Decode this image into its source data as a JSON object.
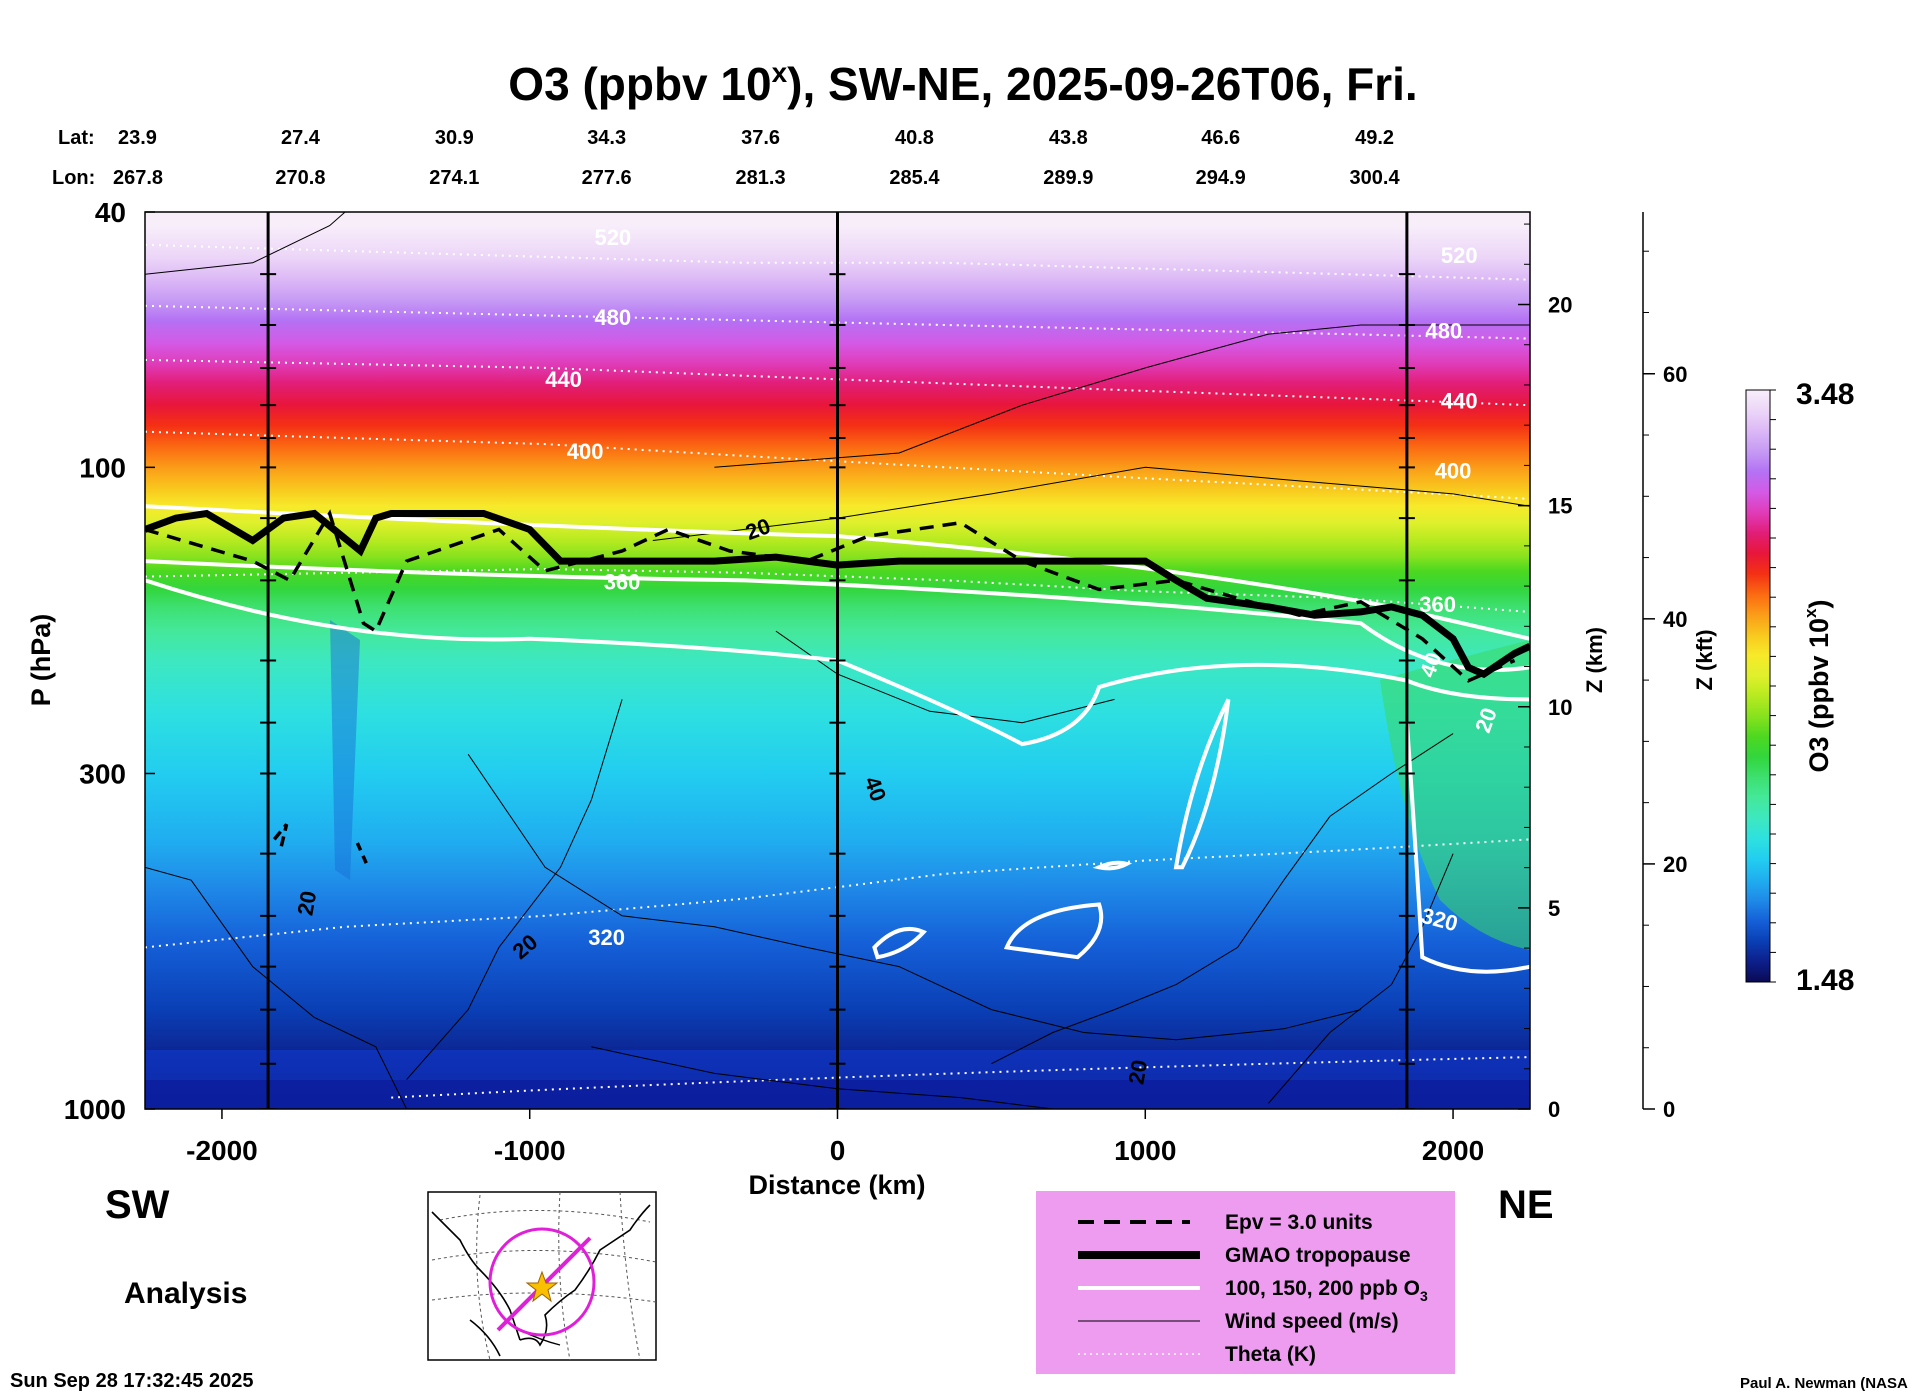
{
  "title": "O3 (ppbv 10",
  "title_sup": "x",
  "title_rest": "), SW-NE, 2025-09-26T06, Fri.",
  "lat_label": "Lat:",
  "lon_label": "Lon:",
  "lats": [
    "23.9",
    "27.4",
    "30.9",
    "34.3",
    "37.6",
    "40.8",
    "43.8",
    "46.6",
    "49.2"
  ],
  "lons": [
    "267.8",
    "270.8",
    "274.1",
    "277.6",
    "281.3",
    "285.4",
    "289.9",
    "294.9",
    "300.4"
  ],
  "sw_label": "SW",
  "ne_label": "NE",
  "analysis_label": "Analysis",
  "timestamp": "Sun Sep 28 17:32:45 2025",
  "credit": "Paul A. Newman (NASA",
  "legend": {
    "items": [
      {
        "label": "Epv = 3.0 units",
        "style": "dashed"
      },
      {
        "label": "GMAO tropopause",
        "style": "thick"
      },
      {
        "label": "100, 150, 200 ppb O",
        "sub": "3",
        "style": "white"
      },
      {
        "label": "Wind speed (m/s)",
        "style": "thin"
      },
      {
        "label": "Theta (K)",
        "style": "dotted"
      }
    ],
    "background": "#ee9cef"
  },
  "colorbar": {
    "min_label": "1.48",
    "max_label": "3.48",
    "title": "O3 (ppbv 10",
    "title_sup": "x",
    "title_end": ")",
    "colors": [
      "#0a0a55",
      "#0d1f8a",
      "#0a3fb5",
      "#1560d8",
      "#1f8ae8",
      "#20aef0",
      "#22cdf0",
      "#2ee0e0",
      "#3de8c0",
      "#44e89a",
      "#3ee070",
      "#32d63e",
      "#4cd820",
      "#86e21e",
      "#b6ea20",
      "#dff02c",
      "#f7ea2a",
      "#f8c81e",
      "#fb9c18",
      "#fb6a12",
      "#f43014",
      "#e8163a",
      "#e11e78",
      "#e03cb8",
      "#d35ae6",
      "#b472f4",
      "#c69af4",
      "#dcb8f6",
      "#ecd6f8",
      "#f8eefa"
    ]
  },
  "chart_data": {
    "type": "heatmap",
    "title": "O3 (ppbv 10^x), SW-NE, 2025-09-26T06, Fri.",
    "xlabel": "Distance (km)",
    "ylabel": "P (hPa)",
    "y2label": "Z (km)",
    "y3label": "Z (kft)",
    "xlim": [
      -2250,
      2250
    ],
    "ylim": [
      1000,
      40
    ],
    "xticks": [
      -2000,
      -1000,
      0,
      1000,
      2000
    ],
    "xtick_labels": [
      "-2000",
      "-1000",
      "0",
      "1000",
      "2000"
    ],
    "yticks": [
      1000,
      300,
      100,
      40
    ],
    "ytick_labels": [
      "1000",
      "300",
      "100",
      "40"
    ],
    "zticks_km": [
      0,
      5,
      10,
      15,
      20
    ],
    "zticks_km_labels": [
      "0",
      "5",
      "10",
      "15",
      "20"
    ],
    "zticks_kft": [
      0,
      20,
      40,
      60
    ],
    "zticks_kft_labels": [
      "0",
      "20",
      "40",
      "60"
    ],
    "value_range": [
      1.48,
      3.48
    ],
    "vertical_lines_km": [
      -1850,
      0,
      1850
    ],
    "tropopause_x": [
      -2250,
      -2150,
      -2050,
      -1900,
      -1800,
      -1700,
      -1550,
      -1500,
      -1450,
      -1300,
      -1150,
      -1000,
      -900,
      -800,
      -600,
      -400,
      -200,
      0,
      200,
      400,
      600,
      800,
      1000,
      1100,
      1200,
      1400,
      1550,
      1700,
      1800,
      1900,
      2000,
      2050,
      2100,
      2200,
      2250
    ],
    "tropopause_p": [
      125,
      120,
      118,
      130,
      120,
      118,
      135,
      120,
      118,
      118,
      118,
      125,
      140,
      140,
      140,
      140,
      138,
      142,
      140,
      140,
      140,
      140,
      140,
      150,
      160,
      165,
      170,
      168,
      165,
      170,
      185,
      205,
      210,
      195,
      190
    ],
    "theta_levels": [
      {
        "label": "320",
        "p": [
          560,
          520,
          500,
          470,
          430,
          410,
          395,
          380
        ]
      },
      {
        "label": "360",
        "p": [
          148,
          146,
          144,
          146,
          150,
          156,
          160,
          168
        ]
      },
      {
        "label": "400",
        "p": [
          88,
          90,
          92,
          96,
          100,
          104,
          108,
          112
        ]
      },
      {
        "label": "440",
        "p": [
          68,
          69,
          70,
          72,
          74,
          76,
          78,
          80
        ]
      },
      {
        "label": "480",
        "p": [
          56,
          57,
          58,
          59,
          60,
          61,
          62,
          63
        ]
      },
      {
        "label": "520",
        "p": [
          45,
          46,
          47,
          48,
          48,
          49,
          50,
          51
        ]
      }
    ],
    "theta_x": [
      -2250,
      -1600,
      -950,
      -300,
      350,
      1000,
      1650,
      2250
    ],
    "annotations": [
      "20",
      "20",
      "20",
      "20",
      "20",
      "40",
      "40",
      "20",
      "320",
      "320",
      "360",
      "360",
      "400",
      "400",
      "440",
      "440",
      "480",
      "480",
      "520",
      "520"
    ]
  }
}
